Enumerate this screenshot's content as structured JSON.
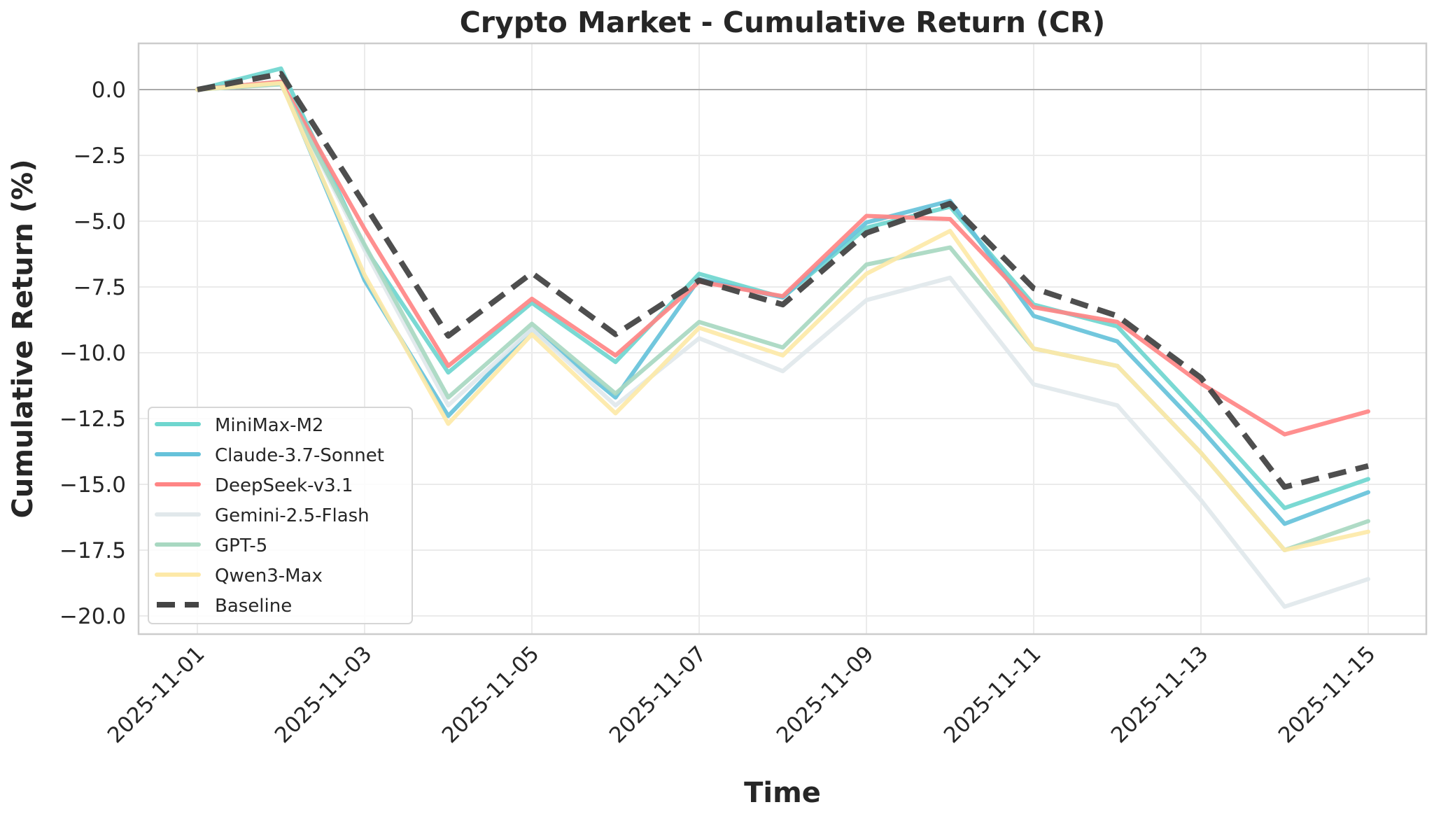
{
  "chart_data": {
    "type": "line",
    "title": "Crypto Market - Cumulative Return (CR)",
    "xlabel": "Time",
    "ylabel": "Cumulative Return (%)",
    "ylim": [
      -20.6,
      1.8
    ],
    "xlim": [
      "2025-10-31T14:00",
      "2025-11-15T16:00"
    ],
    "yticks": [
      0.0,
      -2.5,
      -5.0,
      -7.5,
      -10.0,
      -12.5,
      -15.0,
      -17.5,
      -20.0
    ],
    "ytick_labels": [
      "0.0",
      "−2.5",
      "−5.0",
      "−7.5",
      "−10.0",
      "−12.5",
      "−15.0",
      "−17.5",
      "−20.0"
    ],
    "xticks": [
      "2025-11-01",
      "2025-11-03",
      "2025-11-05",
      "2025-11-07",
      "2025-11-09",
      "2025-11-11",
      "2025-11-13",
      "2025-11-15"
    ],
    "grid": true,
    "zero_line": true,
    "legend_position": "lower left",
    "x": [
      "2025-11-01",
      "2025-11-02",
      "2025-11-03",
      "2025-11-04",
      "2025-11-05",
      "2025-11-06",
      "2025-11-07",
      "2025-11-08",
      "2025-11-09",
      "2025-11-10",
      "2025-11-11",
      "2025-11-12",
      "2025-11-13",
      "2025-11-14",
      "2025-11-15"
    ],
    "series": [
      {
        "name": "MiniMax-M2",
        "color": "#6fd6cf",
        "style": "solid",
        "values": [
          0.0,
          0.8,
          -6.0,
          -10.75,
          -8.1,
          -10.35,
          -7.0,
          -7.9,
          -5.25,
          -4.45,
          -8.17,
          -9.0,
          -12.4,
          -15.9,
          -14.8
        ]
      },
      {
        "name": "Claude-3.7-Sonnet",
        "color": "#66c2da",
        "style": "solid",
        "values": [
          0.0,
          0.3,
          -7.25,
          -12.4,
          -9.1,
          -11.7,
          -7.2,
          -7.9,
          -5.05,
          -4.23,
          -8.6,
          -9.57,
          -12.9,
          -16.5,
          -15.3
        ]
      },
      {
        "name": "DeepSeek-v3.1",
        "color": "#ff8585",
        "style": "solid",
        "values": [
          0.0,
          0.3,
          -5.3,
          -10.5,
          -7.95,
          -10.1,
          -7.3,
          -7.85,
          -4.8,
          -4.92,
          -8.27,
          -8.83,
          -11.17,
          -13.1,
          -12.23
        ]
      },
      {
        "name": "Gemini-2.5-Flash",
        "color": "#e1e8eb",
        "style": "solid",
        "values": [
          0.0,
          0.2,
          -6.1,
          -12.0,
          -9.1,
          -12.0,
          -9.45,
          -10.7,
          -8.0,
          -7.15,
          -11.2,
          -12.0,
          -15.6,
          -19.65,
          -18.6
        ]
      },
      {
        "name": "GPT-5",
        "color": "#a8d8c1",
        "style": "solid",
        "values": [
          0.0,
          0.2,
          -5.9,
          -11.7,
          -8.9,
          -11.55,
          -8.83,
          -9.8,
          -6.65,
          -6.0,
          -9.84,
          -10.5,
          -13.8,
          -17.5,
          -16.4
        ]
      },
      {
        "name": "Qwen3-Max",
        "color": "#fde9a8",
        "style": "solid",
        "values": [
          0.0,
          0.25,
          -7.05,
          -12.7,
          -9.3,
          -12.3,
          -9.05,
          -10.1,
          -7.0,
          -5.37,
          -9.84,
          -10.5,
          -13.8,
          -17.5,
          -16.8
        ]
      },
      {
        "name": "Baseline",
        "color": "#444444",
        "style": "dashed",
        "values": [
          0.0,
          0.6,
          -4.37,
          -9.36,
          -6.97,
          -9.3,
          -7.25,
          -8.17,
          -5.45,
          -4.33,
          -7.55,
          -8.6,
          -10.95,
          -15.1,
          -14.3
        ]
      }
    ]
  },
  "legend": {
    "items": [
      {
        "label": "MiniMax-M2"
      },
      {
        "label": "Claude-3.7-Sonnet"
      },
      {
        "label": "DeepSeek-v3.1"
      },
      {
        "label": "Gemini-2.5-Flash"
      },
      {
        "label": "GPT-5"
      },
      {
        "label": "Qwen3-Max"
      },
      {
        "label": "Baseline"
      }
    ]
  }
}
